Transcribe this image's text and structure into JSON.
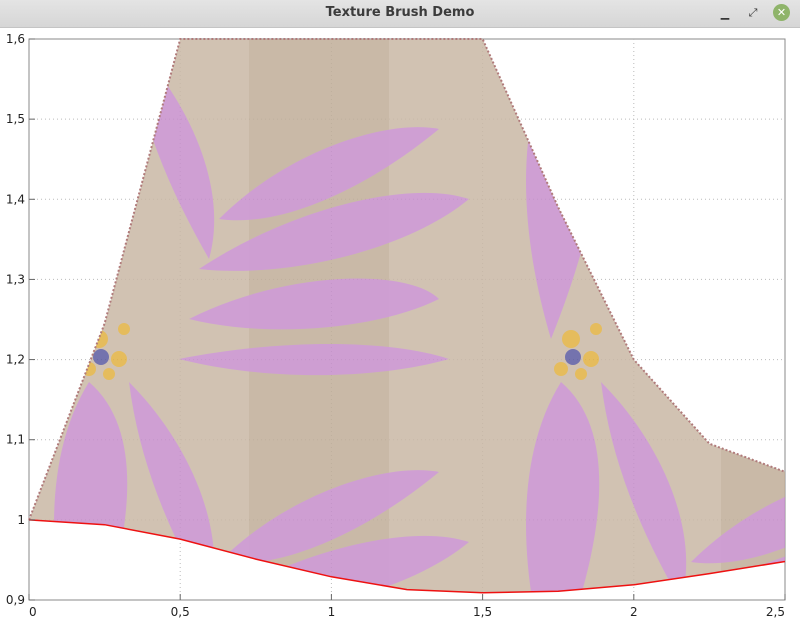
{
  "window": {
    "title": "Texture Brush Demo",
    "buttons": {
      "minimize_icon": "minimize-icon",
      "maximize_icon": "maximize-icon",
      "close_icon": "close-icon"
    }
  },
  "colors": {
    "curve": "#ee1111",
    "fill_outline": "#b07a7a",
    "grid": "#bbbbbb",
    "close_button": "#8fb46a",
    "petal_purple": "#c68ad0",
    "texture_background": "#c9b7a5",
    "flower_center_yellow": "#e0b040",
    "flower_center_blue": "#5b5aa0"
  },
  "chart_data": {
    "type": "area",
    "title": "",
    "xlabel": "",
    "ylabel": "",
    "xlim": [
      0,
      2.5
    ],
    "ylim": [
      0.9,
      1.6
    ],
    "xticks": [
      0,
      0.5,
      1,
      1.5,
      2,
      2.5
    ],
    "xtick_labels": [
      "0",
      "0,5",
      "1",
      "1,5",
      "2",
      "2,5"
    ],
    "yticks": [
      0.9,
      1,
      1.1,
      1.2,
      1.3,
      1.4,
      1.5,
      1.6
    ],
    "ytick_labels": [
      "0,9",
      "1",
      "1,1",
      "1,2",
      "1,3",
      "1,4",
      "1,5",
      "1,6"
    ],
    "grid": true,
    "fill": "texture",
    "series": [
      {
        "role": "lower",
        "line": "solid",
        "x": [
          0,
          0.25,
          0.5,
          0.75,
          1.0,
          1.25,
          1.5,
          1.75,
          2.0,
          2.25,
          2.5
        ],
        "y": [
          1.0,
          0.994,
          0.976,
          0.951,
          0.929,
          0.913,
          0.909,
          0.911,
          0.919,
          0.933,
          0.948
        ]
      },
      {
        "role": "upper",
        "line": "dotted",
        "x": [
          0,
          0.25,
          0.5,
          0.75,
          1.0,
          1.25,
          1.5,
          1.75,
          2.0,
          2.25,
          2.5
        ],
        "y": [
          1.0,
          1.245,
          1.6,
          1.6,
          1.6,
          1.6,
          1.6,
          1.39,
          1.2,
          1.095,
          1.06
        ]
      }
    ]
  }
}
